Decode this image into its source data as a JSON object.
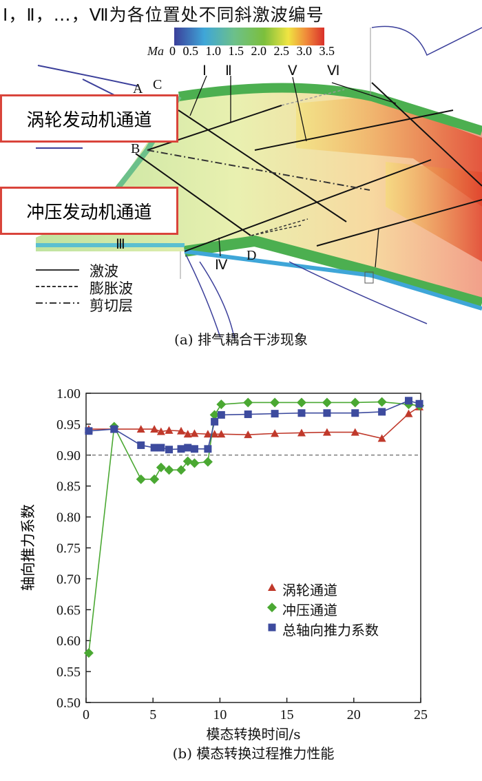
{
  "top_figure": {
    "title": "Ⅰ，Ⅱ，…，Ⅶ为各位置处不同斜激波编号",
    "colorbar": {
      "label": "Ma",
      "ticks": [
        "0",
        "0.5",
        "1.0",
        "1.5",
        "2.0",
        "2.5",
        "3.0",
        "3.5"
      ],
      "colors": [
        "#3b3f9a",
        "#3fa6d8",
        "#58bfa8",
        "#6cb84a",
        "#8dc63f",
        "#f0e442",
        "#f08a3a",
        "#d9302a"
      ]
    },
    "boxes": {
      "turbine": "涡轮发动机通道",
      "ramjet": "冲压发动机通道"
    },
    "points": {
      "A": "A",
      "B": "B",
      "C": "C",
      "D": "D"
    },
    "shock_labels": {
      "s1": "Ⅰ",
      "s2": "Ⅱ",
      "s3": "Ⅲ",
      "s4": "Ⅳ",
      "s5": "Ⅴ",
      "s6": "Ⅵ",
      "s7": "□"
    },
    "legend": {
      "shock": "激波",
      "expansion": "膨胀波",
      "shear": "剪切层"
    },
    "caption": "(a) 排气耦合干涉现象"
  },
  "chart_data": {
    "type": "line",
    "title": "",
    "caption": "(b) 模态转换过程推力性能",
    "xlabel": "模态转换时间/s",
    "ylabel": "轴向推力系数",
    "xlim": [
      0,
      25
    ],
    "ylim": [
      0.5,
      1.0
    ],
    "xticks": [
      "0",
      "5",
      "10",
      "15",
      "20",
      "25"
    ],
    "yticks": [
      "0.50",
      "0.55",
      "0.60",
      "0.65",
      "0.70",
      "0.75",
      "0.80",
      "0.85",
      "0.90",
      "0.95",
      "1.00"
    ],
    "reference_line": 0.9,
    "legend_position": "center-right",
    "x": [
      0.2,
      2.1,
      4.1,
      5.1,
      5.6,
      6.2,
      7.1,
      7.6,
      8.1,
      9.1,
      9.6,
      10.1,
      12.1,
      14.1,
      16.1,
      18.0,
      20.1,
      22.1,
      24.1,
      24.9
    ],
    "series": [
      {
        "name": "涡轮通道",
        "color": "#c0392b",
        "marker": "triangle",
        "values": [
          0.942,
          0.942,
          0.942,
          0.942,
          0.938,
          0.94,
          0.939,
          0.934,
          0.935,
          0.934,
          0.934,
          0.934,
          0.933,
          0.935,
          0.936,
          0.937,
          0.937,
          0.927,
          0.967,
          0.978
        ]
      },
      {
        "name": "冲压通道",
        "color": "#4aa832",
        "marker": "diamond",
        "values": [
          0.58,
          0.946,
          0.861,
          0.861,
          0.88,
          0.876,
          0.876,
          0.89,
          0.887,
          0.889,
          0.965,
          0.982,
          0.985,
          0.985,
          0.985,
          0.985,
          0.985,
          0.986,
          0.982,
          0.98
        ]
      },
      {
        "name": "总轴向推力系数",
        "color": "#3d4b9e",
        "marker": "square",
        "values": [
          0.939,
          0.942,
          0.916,
          0.912,
          0.912,
          0.909,
          0.91,
          0.912,
          0.91,
          0.91,
          0.954,
          0.965,
          0.966,
          0.967,
          0.968,
          0.968,
          0.968,
          0.97,
          0.988,
          0.983
        ]
      }
    ]
  }
}
